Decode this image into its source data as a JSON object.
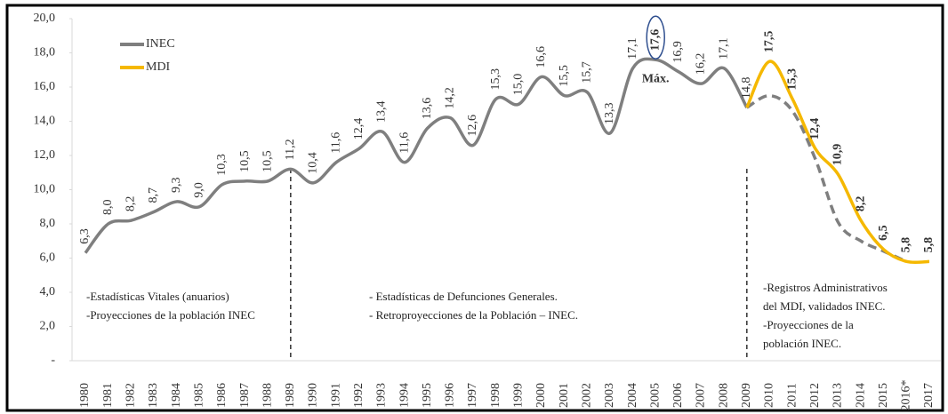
{
  "chart_data": {
    "type": "line",
    "categories": [
      "1980",
      "1981",
      "1982",
      "1983",
      "1984",
      "1985",
      "1986",
      "1987",
      "1988",
      "1989",
      "1990",
      "1991",
      "1992",
      "1993",
      "1994",
      "1995",
      "1996",
      "1997",
      "1998",
      "1999",
      "2000",
      "2001",
      "2002",
      "2003",
      "2004",
      "2005",
      "2006",
      "2007",
      "2008",
      "2009",
      "2010",
      "2011",
      "2012",
      "2013",
      "2014",
      "2015",
      "2016*",
      "2017"
    ],
    "ylim": [
      0,
      20
    ],
    "yticks": [
      {
        "value": 0,
        "label": "-"
      },
      {
        "value": 2,
        "label": "2,0"
      },
      {
        "value": 4,
        "label": "4,0"
      },
      {
        "value": 6,
        "label": "6,0"
      },
      {
        "value": 8,
        "label": "8,0"
      },
      {
        "value": 10,
        "label": "10,0"
      },
      {
        "value": 12,
        "label": "12,0"
      },
      {
        "value": 14,
        "label": "14,0"
      },
      {
        "value": 16,
        "label": "16,0"
      },
      {
        "value": 18,
        "label": "18,0"
      },
      {
        "value": 20,
        "label": "20,0"
      }
    ],
    "series": [
      {
        "name": "INEC",
        "color": "#7f7f7f",
        "values": [
          6.3,
          8.0,
          8.2,
          8.7,
          9.3,
          9.0,
          10.3,
          10.5,
          10.5,
          11.2,
          10.4,
          11.6,
          12.4,
          13.4,
          11.6,
          13.6,
          14.2,
          12.6,
          15.3,
          15.0,
          16.6,
          15.5,
          15.7,
          13.3,
          17.1,
          17.6,
          16.9,
          16.2,
          17.1,
          14.8,
          null,
          null,
          null,
          null,
          null,
          null,
          null,
          null
        ],
        "value_labels": [
          "6,3",
          "8,0",
          "8,2",
          "8,7",
          "9,3",
          "9,0",
          "10,3",
          "10,5",
          "10,5",
          "11,2",
          "10,4",
          "11,6",
          "12,4",
          "13,4",
          "11,6",
          "13,6",
          "14,2",
          "12,6",
          "15,3",
          "15,0",
          "16,6",
          "15,5",
          "15,7",
          "13,3",
          "17,1",
          "17,6",
          "16,9",
          "16,2",
          "17,1",
          "14,8",
          null,
          null,
          null,
          null,
          null,
          null,
          null,
          null
        ],
        "dashed_values": [
          null,
          null,
          null,
          null,
          null,
          null,
          null,
          null,
          null,
          null,
          null,
          null,
          null,
          null,
          null,
          null,
          null,
          null,
          null,
          null,
          null,
          null,
          null,
          null,
          null,
          null,
          null,
          null,
          null,
          14.8,
          15.5,
          14.6,
          11.8,
          8.1,
          7.0,
          6.4,
          5.8,
          null
        ]
      },
      {
        "name": "MDI",
        "color": "#f5b800",
        "values": [
          null,
          null,
          null,
          null,
          null,
          null,
          null,
          null,
          null,
          null,
          null,
          null,
          null,
          null,
          null,
          null,
          null,
          null,
          null,
          null,
          null,
          null,
          null,
          null,
          null,
          null,
          null,
          null,
          null,
          14.8,
          17.5,
          15.3,
          12.4,
          10.9,
          8.2,
          6.5,
          5.8,
          5.8
        ],
        "value_labels": [
          null,
          null,
          null,
          null,
          null,
          null,
          null,
          null,
          null,
          null,
          null,
          null,
          null,
          null,
          null,
          null,
          null,
          null,
          null,
          null,
          null,
          null,
          null,
          null,
          null,
          null,
          null,
          null,
          null,
          null,
          "17,5",
          "15,3",
          "12,4",
          "10,9",
          "8,2",
          "6,5",
          "5,8",
          "5,8"
        ]
      }
    ],
    "highlight": {
      "series": 0,
      "index": 25,
      "color": "#c00000",
      "label": "Máx."
    },
    "reference_lines": [
      "1989",
      "2009"
    ],
    "annotations": [
      {
        "lines": [
          "-Estadísticas Vitales (anuarios)",
          "-Proyecciones de la población INEC"
        ]
      },
      {
        "lines": [
          "- Estadísticas de Defunciones Generales.",
          "- Retroproyecciones de la Población – INEC."
        ]
      },
      {
        "lines": [
          "-Registros Administrativos",
          "del MDI, validados INEC.",
          "-Proyecciones de la",
          "población INEC."
        ]
      }
    ],
    "legend": "upper left"
  }
}
